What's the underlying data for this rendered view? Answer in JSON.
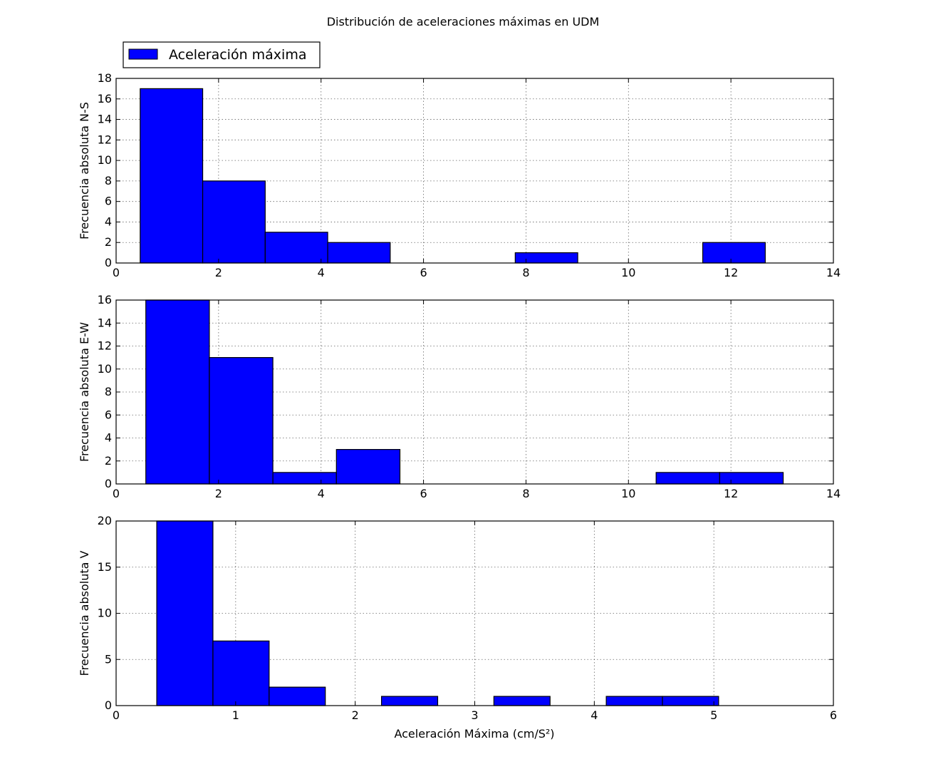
{
  "chart_data": {
    "type": "bar",
    "title": "Distribución de aceleraciones máximas en UDM",
    "xlabel": "Aceleración Máxima (cm/S²)",
    "legend": {
      "label": "Aceleración máxima",
      "placement": "top-left",
      "color": "#0000ff"
    },
    "bar_color": "#0000ff",
    "grid": true,
    "panels": [
      {
        "ylabel": "Frecuencia absoluta N-S",
        "xlim": [
          0,
          14
        ],
        "ylim": [
          0,
          18
        ],
        "xticks": [
          "0",
          "2",
          "4",
          "6",
          "8",
          "10",
          "12",
          "14"
        ],
        "yticks": [
          "0",
          "2",
          "4",
          "6",
          "8",
          "10",
          "12",
          "14",
          "16",
          "18"
        ],
        "bins": [
          {
            "x0": 0.47,
            "x1": 1.69,
            "value": 17
          },
          {
            "x0": 1.69,
            "x1": 2.91,
            "value": 8
          },
          {
            "x0": 2.91,
            "x1": 4.13,
            "value": 3
          },
          {
            "x0": 4.13,
            "x1": 5.35,
            "value": 2
          },
          {
            "x0": 5.35,
            "x1": 6.57,
            "value": 0
          },
          {
            "x0": 6.57,
            "x1": 7.79,
            "value": 0
          },
          {
            "x0": 7.79,
            "x1": 9.01,
            "value": 1
          },
          {
            "x0": 9.01,
            "x1": 10.23,
            "value": 0
          },
          {
            "x0": 10.23,
            "x1": 11.45,
            "value": 0
          },
          {
            "x0": 11.45,
            "x1": 12.67,
            "value": 2
          }
        ]
      },
      {
        "ylabel": "Frecuencia absoluta E-W",
        "xlim": [
          0,
          14
        ],
        "ylim": [
          0,
          16
        ],
        "xticks": [
          "0",
          "2",
          "4",
          "6",
          "8",
          "10",
          "12",
          "14"
        ],
        "yticks": [
          "0",
          "2",
          "4",
          "6",
          "8",
          "10",
          "12",
          "14",
          "16"
        ],
        "bins": [
          {
            "x0": 0.58,
            "x1": 1.82,
            "value": 16
          },
          {
            "x0": 1.82,
            "x1": 3.06,
            "value": 11
          },
          {
            "x0": 3.06,
            "x1": 4.3,
            "value": 1
          },
          {
            "x0": 4.3,
            "x1": 5.54,
            "value": 3
          },
          {
            "x0": 5.54,
            "x1": 6.78,
            "value": 0
          },
          {
            "x0": 6.78,
            "x1": 8.02,
            "value": 0
          },
          {
            "x0": 8.02,
            "x1": 9.26,
            "value": 0
          },
          {
            "x0": 9.26,
            "x1": 10.5,
            "value": 0
          },
          {
            "x0": 10.54,
            "x1": 11.78,
            "value": 1
          },
          {
            "x0": 11.78,
            "x1": 13.02,
            "value": 1
          }
        ]
      },
      {
        "ylabel": "Frecuencia absoluta V",
        "xlim": [
          0,
          6
        ],
        "ylim": [
          0,
          20
        ],
        "xticks": [
          "0",
          "1",
          "2",
          "3",
          "4",
          "5",
          "6"
        ],
        "yticks": [
          "0",
          "5",
          "10",
          "15",
          "20"
        ],
        "bins": [
          {
            "x0": 0.34,
            "x1": 0.81,
            "value": 20
          },
          {
            "x0": 0.81,
            "x1": 1.28,
            "value": 7
          },
          {
            "x0": 1.28,
            "x1": 1.75,
            "value": 2
          },
          {
            "x0": 1.75,
            "x1": 2.22,
            "value": 0
          },
          {
            "x0": 2.22,
            "x1": 2.69,
            "value": 1
          },
          {
            "x0": 2.69,
            "x1": 3.16,
            "value": 0
          },
          {
            "x0": 3.16,
            "x1": 3.63,
            "value": 1
          },
          {
            "x0": 3.63,
            "x1": 4.1,
            "value": 0
          },
          {
            "x0": 4.1,
            "x1": 4.57,
            "value": 1
          },
          {
            "x0": 4.57,
            "x1": 5.04,
            "value": 1
          }
        ]
      }
    ]
  }
}
